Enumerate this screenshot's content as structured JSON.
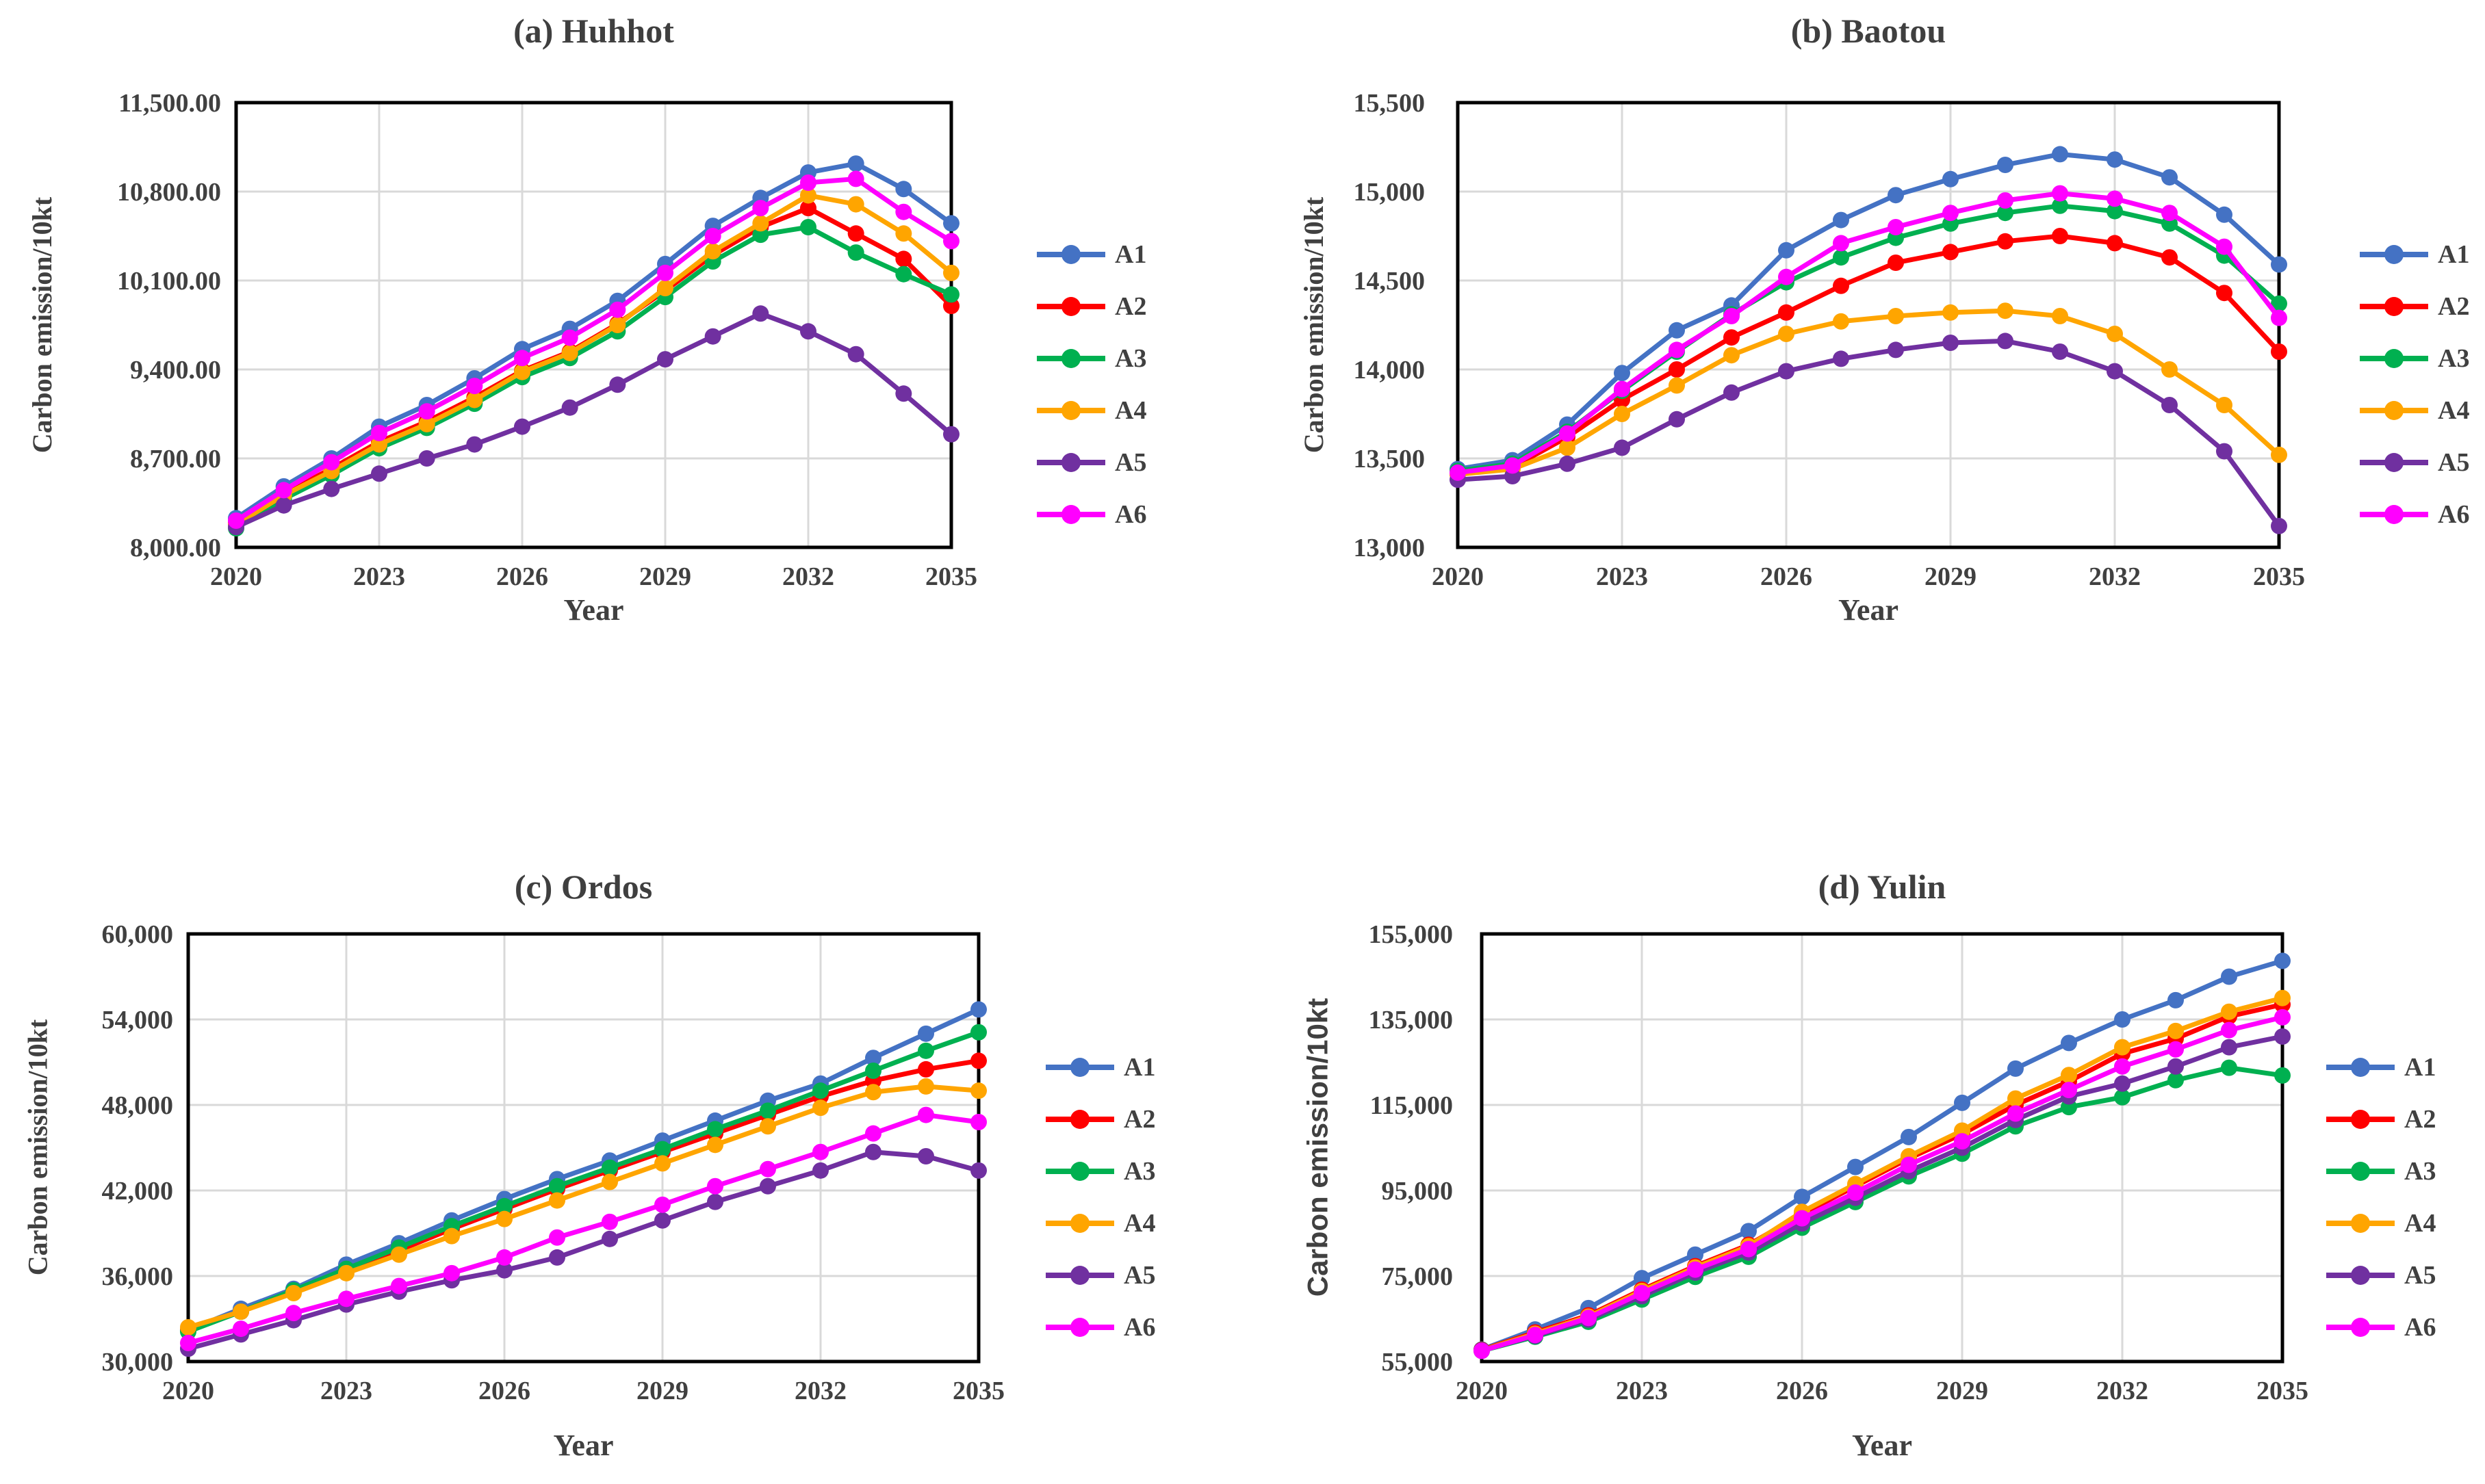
{
  "figure": {
    "background": "#ffffff",
    "title_color": "#3f3f3f",
    "axis_text_color": "#404040",
    "grid_color": "#d9d9d9",
    "plot_border_color": "#000000"
  },
  "chart_data": [
    {
      "id": "huhhot",
      "type": "line",
      "title": "(a) Huhhot",
      "xlabel": "Year",
      "ylabel": "Carbon emission/10kt",
      "x": [
        2020,
        2021,
        2022,
        2023,
        2024,
        2025,
        2026,
        2027,
        2028,
        2029,
        2030,
        2031,
        2032,
        2033,
        2034,
        2035
      ],
      "xticks": [
        2020,
        2023,
        2026,
        2029,
        2032,
        2035
      ],
      "ylim": [
        8000,
        11500
      ],
      "yticks": [
        8000,
        8700,
        9400,
        10100,
        10800,
        11500
      ],
      "ytick_labels": [
        "8,000.00",
        "8,700.00",
        "9,400.00",
        "10,100.00",
        "10,800.00",
        "11,500.00"
      ],
      "grid": true,
      "legend_position": "right",
      "series": [
        {
          "name": "A1",
          "color": "#4472C4",
          "values": [
            8230,
            8480,
            8700,
            8950,
            9120,
            9330,
            9560,
            9720,
            9940,
            10230,
            10530,
            10750,
            10950,
            11020,
            10820,
            10550
          ]
        },
        {
          "name": "A2",
          "color": "#FF0000",
          "values": [
            8190,
            8420,
            8620,
            8830,
            8990,
            9180,
            9390,
            9540,
            9760,
            10020,
            10300,
            10520,
            10670,
            10470,
            10270,
            9900
          ]
        },
        {
          "name": "A3",
          "color": "#00B050",
          "values": [
            8150,
            8380,
            8570,
            8780,
            8940,
            9130,
            9340,
            9490,
            9700,
            9970,
            10250,
            10460,
            10520,
            10320,
            10150,
            9990
          ]
        },
        {
          "name": "A4",
          "color": "#FFA500",
          "values": [
            8180,
            8410,
            8600,
            8810,
            8970,
            9160,
            9380,
            9530,
            9750,
            10040,
            10330,
            10550,
            10770,
            10700,
            10470,
            10160
          ]
        },
        {
          "name": "A5",
          "color": "#7030A0",
          "values": [
            8160,
            8330,
            8460,
            8580,
            8700,
            8810,
            8950,
            9100,
            9280,
            9480,
            9660,
            9840,
            9700,
            9520,
            9210,
            8890
          ]
        },
        {
          "name": "A6",
          "color": "#FF00FF",
          "values": [
            8210,
            8450,
            8670,
            8900,
            9070,
            9270,
            9490,
            9650,
            9870,
            10160,
            10450,
            10670,
            10870,
            10900,
            10640,
            10410
          ]
        }
      ]
    },
    {
      "id": "baotou",
      "type": "line",
      "title": "(b) Baotou",
      "xlabel": "Year",
      "ylabel": "Carbon emission/10kt",
      "x": [
        2020,
        2021,
        2022,
        2023,
        2024,
        2025,
        2026,
        2027,
        2028,
        2029,
        2030,
        2031,
        2032,
        2033,
        2034,
        2035
      ],
      "xticks": [
        2020,
        2023,
        2026,
        2029,
        2032,
        2035
      ],
      "ylim": [
        13000,
        15500
      ],
      "yticks": [
        13000,
        13500,
        14000,
        14500,
        15000,
        15500
      ],
      "ytick_labels": [
        "13,000",
        "13,500",
        "14,000",
        "14,500",
        "15,000",
        "15,500"
      ],
      "grid": true,
      "legend_position": "right",
      "series": [
        {
          "name": "A1",
          "color": "#4472C4",
          "values": [
            13440,
            13490,
            13690,
            13980,
            14220,
            14360,
            14670,
            14840,
            14980,
            15070,
            15150,
            15210,
            15180,
            15080,
            14870,
            14590
          ]
        },
        {
          "name": "A2",
          "color": "#FF0000",
          "values": [
            13410,
            13450,
            13620,
            13830,
            14000,
            14180,
            14320,
            14470,
            14600,
            14660,
            14720,
            14750,
            14710,
            14630,
            14430,
            14100
          ]
        },
        {
          "name": "A3",
          "color": "#00B050",
          "values": [
            13430,
            13470,
            13650,
            13880,
            14100,
            14310,
            14490,
            14630,
            14740,
            14820,
            14880,
            14920,
            14890,
            14820,
            14640,
            14370
          ]
        },
        {
          "name": "A4",
          "color": "#FFA500",
          "values": [
            13410,
            13440,
            13560,
            13750,
            13910,
            14080,
            14200,
            14270,
            14300,
            14320,
            14330,
            14300,
            14200,
            14000,
            13800,
            13520
          ]
        },
        {
          "name": "A5",
          "color": "#7030A0",
          "values": [
            13380,
            13400,
            13470,
            13560,
            13720,
            13870,
            13990,
            14060,
            14110,
            14150,
            14160,
            14100,
            13990,
            13800,
            13540,
            13120
          ]
        },
        {
          "name": "A6",
          "color": "#FF00FF",
          "values": [
            13420,
            13460,
            13640,
            13890,
            14110,
            14300,
            14520,
            14710,
            14800,
            14880,
            14950,
            14990,
            14960,
            14880,
            14690,
            14290
          ]
        }
      ]
    },
    {
      "id": "ordos",
      "type": "line",
      "title": "(c) Ordos",
      "xlabel": "Year",
      "ylabel": "Carbon emission/10kt",
      "x": [
        2020,
        2021,
        2022,
        2023,
        2024,
        2025,
        2026,
        2027,
        2028,
        2029,
        2030,
        2031,
        2032,
        2033,
        2034,
        2035
      ],
      "xticks": [
        2020,
        2023,
        2026,
        2029,
        2032,
        2035
      ],
      "ylim": [
        30000,
        60000
      ],
      "yticks": [
        30000,
        36000,
        42000,
        48000,
        54000,
        60000
      ],
      "ytick_labels": [
        "30,000",
        "36,000",
        "42,000",
        "48,000",
        "54,000",
        "60,000"
      ],
      "grid": true,
      "legend_position": "right",
      "series": [
        {
          "name": "A1",
          "color": "#4472C4",
          "values": [
            32200,
            33700,
            35100,
            36800,
            38300,
            39900,
            41400,
            42800,
            44100,
            45500,
            46900,
            48300,
            49500,
            51300,
            53000,
            54700
          ]
        },
        {
          "name": "A2",
          "color": "#FF0000",
          "values": [
            32200,
            33500,
            34900,
            36400,
            37800,
            39300,
            40700,
            42100,
            43400,
            44700,
            46000,
            47300,
            48600,
            49700,
            50500,
            51100
          ]
        },
        {
          "name": "A3",
          "color": "#00B050",
          "values": [
            32100,
            33500,
            35000,
            36500,
            38000,
            39500,
            40900,
            42300,
            43600,
            44900,
            46300,
            47600,
            49000,
            50400,
            51800,
            53100
          ]
        },
        {
          "name": "A4",
          "color": "#FFA500",
          "values": [
            32400,
            33500,
            34800,
            36200,
            37500,
            38800,
            40000,
            41300,
            42600,
            43900,
            45200,
            46500,
            47800,
            48900,
            49300,
            49000
          ]
        },
        {
          "name": "A5",
          "color": "#7030A0",
          "values": [
            30900,
            31900,
            32900,
            34000,
            34900,
            35700,
            36400,
            37300,
            38600,
            39900,
            41200,
            42300,
            43400,
            44700,
            44400,
            43400
          ]
        },
        {
          "name": "A6",
          "color": "#FF00FF",
          "values": [
            31300,
            32300,
            33400,
            34400,
            35300,
            36200,
            37300,
            38700,
            39800,
            41000,
            42300,
            43500,
            44700,
            46000,
            47300,
            46800
          ]
        }
      ]
    },
    {
      "id": "yulin",
      "type": "line",
      "title": "(d) Yulin",
      "xlabel": "Year",
      "ylabel": "Carbon emission/10kt",
      "x": [
        2020,
        2021,
        2022,
        2023,
        2024,
        2025,
        2026,
        2027,
        2028,
        2029,
        2030,
        2031,
        2032,
        2033,
        2034,
        2035
      ],
      "xticks": [
        2020,
        2023,
        2026,
        2029,
        2032,
        2035
      ],
      "ylim": [
        55000,
        155000
      ],
      "yticks": [
        55000,
        75000,
        95000,
        115000,
        135000,
        155000
      ],
      "ytick_labels": [
        "55,000",
        "75,000",
        "95,000",
        "115,000",
        "135,000",
        "155,000"
      ],
      "grid": true,
      "legend_position": "right",
      "series": [
        {
          "name": "A1",
          "color": "#4472C4",
          "values": [
            57800,
            62500,
            67500,
            74500,
            80000,
            85500,
            93500,
            100500,
            107500,
            115500,
            123500,
            129500,
            135000,
            139500,
            145000,
            148700
          ]
        },
        {
          "name": "A2",
          "color": "#FF0000",
          "values": [
            57700,
            61800,
            65800,
            71800,
            77300,
            82300,
            89500,
            96000,
            102500,
            108200,
            115000,
            120500,
            127000,
            130500,
            135700,
            138500
          ]
        },
        {
          "name": "A3",
          "color": "#00B050",
          "values": [
            57500,
            60800,
            64300,
            69500,
            74800,
            79500,
            86300,
            92300,
            98300,
            103600,
            110000,
            114500,
            116800,
            120800,
            123700,
            121900
          ]
        },
        {
          "name": "A4",
          "color": "#FFA500",
          "values": [
            57600,
            61500,
            65500,
            71500,
            77000,
            82000,
            90000,
            96500,
            103000,
            109000,
            116500,
            122000,
            128500,
            132300,
            136800,
            140000
          ]
        },
        {
          "name": "A5",
          "color": "#7030A0",
          "values": [
            57600,
            61000,
            64800,
            70300,
            75800,
            80500,
            87300,
            93300,
            99500,
            105000,
            111500,
            117000,
            120000,
            124000,
            128500,
            131000
          ]
        },
        {
          "name": "A6",
          "color": "#FF00FF",
          "values": [
            57500,
            61200,
            65200,
            71000,
            76500,
            81300,
            88500,
            94500,
            101000,
            106500,
            113000,
            118500,
            124000,
            128000,
            132500,
            135500
          ]
        }
      ]
    }
  ]
}
